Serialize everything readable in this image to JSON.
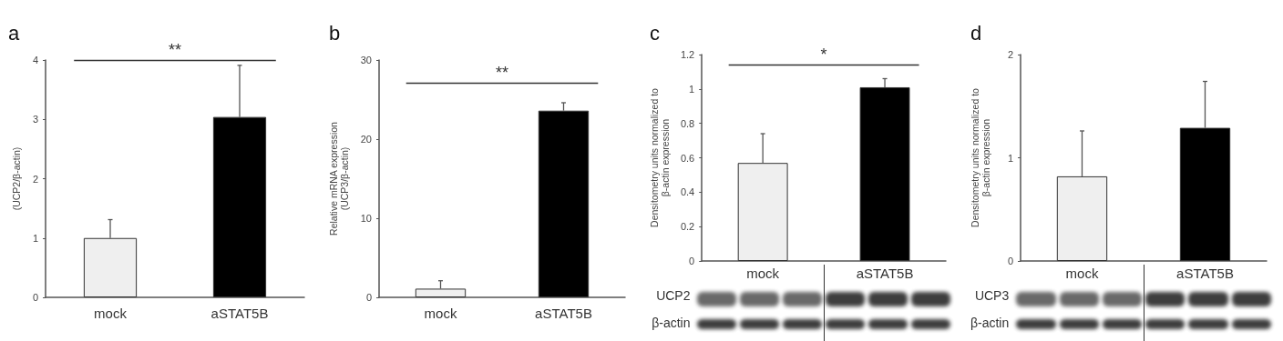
{
  "chart_data": [
    {
      "type": "bar",
      "title": "a",
      "ylabel": "(UCP2/β-actin)",
      "categories": [
        "mock",
        "aSTAT5B"
      ],
      "values": [
        1.0,
        3.04
      ],
      "colors": [
        "#efefef",
        "#000000"
      ],
      "errors": [
        [
          1.0,
          1.31
        ],
        [
          3.04,
          3.91
        ]
      ],
      "ylim": [
        0,
        4
      ],
      "yticks": [
        0,
        1,
        2,
        3,
        4
      ],
      "ref_lines": [
        {
          "axis": "y",
          "value": 4.0,
          "label": "**"
        }
      ]
    },
    {
      "type": "bar",
      "title": "b",
      "ylabel": "Relative mRNA expression\n(UCP3/β-actin)",
      "categories": [
        "mock",
        "aSTAT5B"
      ],
      "values": [
        1.1,
        23.6
      ],
      "colors": [
        "#efefef",
        "#000000"
      ],
      "errors": [
        [
          1.1,
          2.1
        ],
        [
          23.6,
          24.6
        ]
      ],
      "ylim": [
        0,
        30
      ],
      "yticks": [
        0,
        10,
        20,
        30
      ],
      "ref_lines": [
        {
          "axis": "y",
          "value": 27.1,
          "label": "**"
        }
      ]
    },
    {
      "type": "bar",
      "title": "c",
      "ylabel": "Densitometry units normalized to\nβ-actin expression",
      "categories": [
        "mock",
        "aSTAT5B"
      ],
      "values": [
        0.57,
        1.01
      ],
      "colors": [
        "#efefef",
        "#000000"
      ],
      "errors": [
        [
          0.57,
          0.74
        ],
        [
          1.01,
          1.06
        ]
      ],
      "ylim": [
        0,
        1.2
      ],
      "yticks": [
        0,
        0.2,
        0.4,
        0.6,
        0.8,
        1,
        1.2
      ],
      "ref_lines": [
        {
          "axis": "y",
          "value": 1.14,
          "label": "*"
        }
      ],
      "annotations": [
        "UCP2",
        "β-actin"
      ]
    },
    {
      "type": "bar",
      "title": "d",
      "ylabel": "Densitometry units normalized to\nβ-actin expression",
      "categories": [
        "mock",
        "aSTAT5B"
      ],
      "values": [
        0.82,
        1.29
      ],
      "colors": [
        "#efefef",
        "#000000"
      ],
      "errors": [
        [
          0.82,
          1.26
        ],
        [
          1.29,
          1.74
        ]
      ],
      "ylim": [
        0,
        2
      ],
      "yticks": [
        0,
        1,
        2
      ],
      "annotations": [
        "UCP3",
        "β-actin"
      ]
    }
  ]
}
